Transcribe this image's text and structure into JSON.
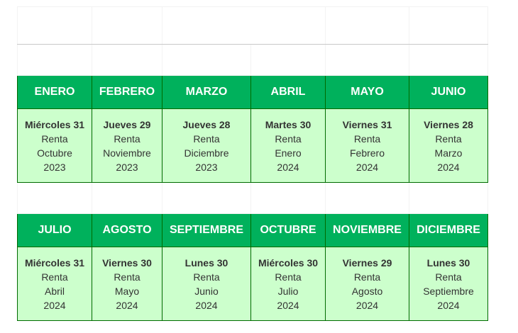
{
  "year": "2024",
  "colors": {
    "header_green": "#00b15c",
    "cell_green": "#ccffcc",
    "border": "#006b00"
  },
  "rows": [
    [
      {
        "month": "ENERO",
        "date": "Miércoles 31",
        "label": "Renta",
        "ref_month": "Octubre",
        "ref_year": "2023"
      },
      {
        "month": "FEBRERO",
        "date": "Jueves 29",
        "label": "Renta",
        "ref_month": "Noviembre",
        "ref_year": "2023"
      },
      {
        "month": "MARZO",
        "date": "Jueves 28",
        "label": "Renta",
        "ref_month": "Diciembre",
        "ref_year": "2023"
      },
      {
        "month": "ABRIL",
        "date": "Martes 30",
        "label": "Renta",
        "ref_month": "Enero",
        "ref_year": "2024"
      },
      {
        "month": "MAYO",
        "date": "Viernes 31",
        "label": "Renta",
        "ref_month": "Febrero",
        "ref_year": "2024"
      },
      {
        "month": "JUNIO",
        "date": "Viernes 28",
        "label": "Renta",
        "ref_month": "Marzo",
        "ref_year": "2024"
      }
    ],
    [
      {
        "month": "JULIO",
        "date": "Miércoles 31",
        "label": "Renta",
        "ref_month": "Abril",
        "ref_year": "2024"
      },
      {
        "month": "AGOSTO",
        "date": "Viernes 30",
        "label": "Renta",
        "ref_month": "Mayo",
        "ref_year": "2024"
      },
      {
        "month": "SEPTIEMBRE",
        "date": "Lunes 30",
        "label": "Renta",
        "ref_month": "Junio",
        "ref_year": "2024"
      },
      {
        "month": "OCTUBRE",
        "date": "Miércoles 30",
        "label": "Renta",
        "ref_month": "Julio",
        "ref_year": "2024"
      },
      {
        "month": "NOVIEMBRE",
        "date": "Viernes 29",
        "label": "Renta",
        "ref_month": "Agosto",
        "ref_year": "2024"
      },
      {
        "month": "DICIEMBRE",
        "date": "Lunes 30",
        "label": "Renta",
        "ref_month": "Septiembre",
        "ref_year": "2024"
      }
    ]
  ]
}
